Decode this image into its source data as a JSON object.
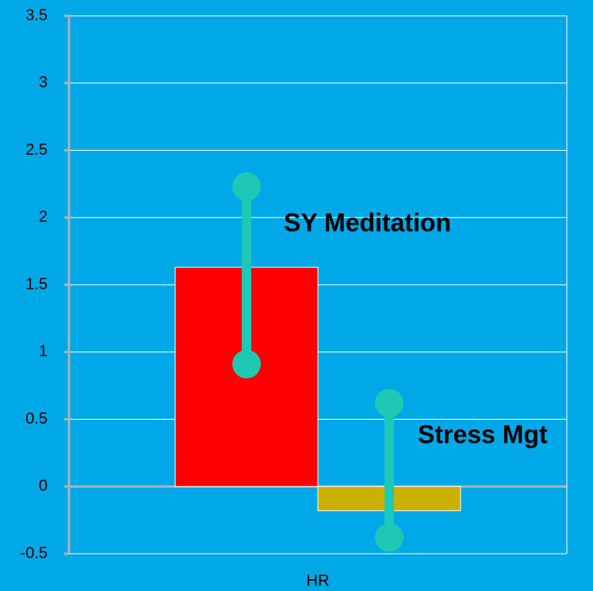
{
  "chart_data": {
    "type": "bar",
    "categories": [
      "HR"
    ],
    "series": [
      {
        "name": "SY Meditation",
        "color": "#ff0000",
        "label_color": "#ee1111",
        "values": [
          1.63
        ],
        "error_low": [
          0.91
        ],
        "error_high": [
          2.23
        ]
      },
      {
        "name": "Stress Mgt",
        "color": "#ccb000",
        "label_color": "#000000",
        "values": [
          -0.18
        ],
        "error_low": [
          -0.38
        ],
        "error_high": [
          0.62
        ]
      }
    ],
    "error_color": "#1ec8b4",
    "ylim": [
      -0.5,
      3.5
    ],
    "yticks": [
      -0.5,
      0,
      0.5,
      1,
      1.5,
      2,
      2.5,
      3,
      3.5
    ],
    "grid": true
  }
}
